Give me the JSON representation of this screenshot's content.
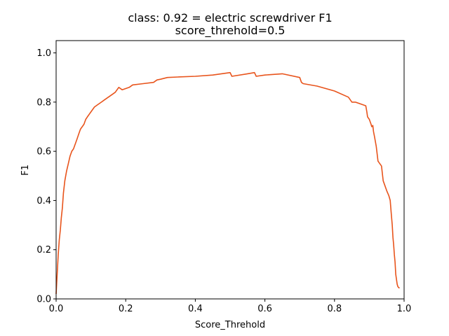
{
  "chart_data": {
    "type": "line",
    "title": "class: 0.92 = electric screwdriver F1",
    "subtitle": "score_threhold=0.5",
    "xlabel": "Score_Threhold",
    "ylabel": "F1",
    "xlim": [
      0.0,
      1.0
    ],
    "ylim": [
      0.0,
      1.05
    ],
    "xticks": [
      "0.0",
      "0.2",
      "0.4",
      "0.6",
      "0.8",
      "1.0"
    ],
    "yticks": [
      "0.0",
      "0.2",
      "0.4",
      "0.6",
      "0.8",
      "1.0"
    ],
    "grid": false,
    "color": "#e8541c",
    "series": [
      {
        "x": [
          0.0,
          0.003,
          0.006,
          0.009,
          0.012,
          0.015,
          0.018,
          0.021,
          0.025,
          0.03,
          0.035,
          0.04,
          0.045,
          0.05,
          0.055,
          0.06,
          0.065,
          0.07,
          0.075,
          0.08,
          0.085,
          0.09,
          0.1,
          0.11,
          0.12,
          0.13,
          0.14,
          0.15,
          0.16,
          0.17,
          0.18,
          0.19,
          0.2,
          0.21,
          0.22,
          0.25,
          0.28,
          0.29,
          0.3,
          0.32,
          0.35,
          0.4,
          0.45,
          0.5,
          0.505,
          0.55,
          0.57,
          0.575,
          0.6,
          0.65,
          0.7,
          0.705,
          0.71,
          0.75,
          0.8,
          0.84,
          0.85,
          0.86,
          0.88,
          0.89,
          0.893,
          0.895,
          0.9,
          0.905,
          0.907,
          0.91,
          0.912,
          0.915,
          0.92,
          0.925,
          0.93,
          0.935,
          0.94,
          0.945,
          0.95,
          0.953,
          0.956,
          0.96,
          0.963,
          0.966,
          0.968,
          0.97,
          0.972,
          0.974,
          0.976,
          0.978,
          0.98,
          0.982,
          0.985,
          0.987
        ],
        "y": [
          0.02,
          0.1,
          0.18,
          0.24,
          0.28,
          0.33,
          0.37,
          0.43,
          0.48,
          0.52,
          0.55,
          0.58,
          0.6,
          0.61,
          0.63,
          0.65,
          0.67,
          0.69,
          0.7,
          0.71,
          0.73,
          0.74,
          0.76,
          0.78,
          0.79,
          0.8,
          0.81,
          0.82,
          0.83,
          0.84,
          0.86,
          0.85,
          0.855,
          0.86,
          0.87,
          0.875,
          0.88,
          0.89,
          0.893,
          0.9,
          0.902,
          0.905,
          0.91,
          0.92,
          0.905,
          0.915,
          0.92,
          0.905,
          0.91,
          0.915,
          0.9,
          0.88,
          0.875,
          0.865,
          0.845,
          0.82,
          0.8,
          0.8,
          0.79,
          0.785,
          0.76,
          0.74,
          0.73,
          0.71,
          0.7,
          0.705,
          0.68,
          0.66,
          0.62,
          0.56,
          0.55,
          0.54,
          0.48,
          0.46,
          0.44,
          0.43,
          0.42,
          0.4,
          0.35,
          0.3,
          0.25,
          0.22,
          0.18,
          0.15,
          0.1,
          0.08,
          0.06,
          0.05,
          0.045,
          0.045
        ]
      }
    ]
  }
}
